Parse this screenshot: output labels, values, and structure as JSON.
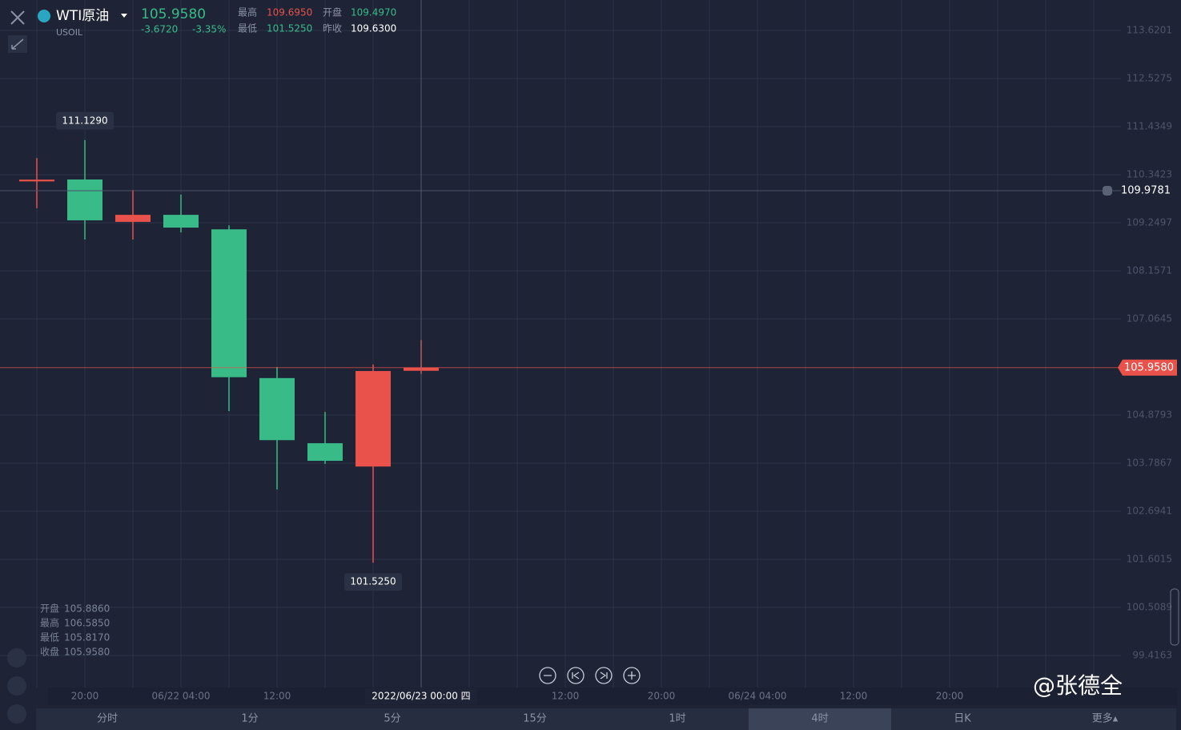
{
  "header": {
    "name": "WTI原油",
    "symbol": "USOIL",
    "price": "105.9580",
    "change": "-3.6720",
    "change_pct": "-3.35%",
    "stats": [
      {
        "label": "最高",
        "value": "109.6950"
      },
      {
        "label": "开盘",
        "value": "109.4970"
      },
      {
        "label": "最低",
        "value": "101.5250"
      },
      {
        "label": "昨收",
        "value": "109.6300"
      }
    ]
  },
  "ohlc_panel": [
    {
      "label": "开盘",
      "value": "105.8860"
    },
    {
      "label": "最高",
      "value": "106.5850"
    },
    {
      "label": "最低",
      "value": "105.8170"
    },
    {
      "label": "收盘",
      "value": "105.9580"
    }
  ],
  "tabs": [
    "分时",
    "1分",
    "5分",
    "15分",
    "1时",
    "4时",
    "日K",
    "更多▴"
  ],
  "watermark": "@张德全",
  "chart_data": {
    "type": "candlestick",
    "categories": [
      null,
      "20:00",
      null,
      "06/22 04:00",
      null,
      "12:00",
      null,
      null,
      null,
      null,
      null,
      "12:00",
      null,
      "20:00",
      null,
      "06/24 04:00",
      null,
      "12:00",
      null,
      "20:00",
      null,
      null,
      null
    ],
    "crosshair_label": "2022/06/23 00:00 四",
    "open": [
      110.19,
      110.233,
      109.27,
      109.43,
      109.1,
      105.72,
      104.24,
      103.71,
      105.886,
      null,
      null,
      null,
      null,
      null,
      null,
      null,
      null,
      null,
      null,
      null,
      null,
      null,
      null
    ],
    "high": [
      110.72,
      111.129,
      109.996,
      109.89,
      109.19,
      105.97,
      104.95,
      106.03,
      106.585,
      null,
      null,
      null,
      null,
      null,
      null,
      null,
      null,
      null,
      null,
      null,
      null,
      null,
      null
    ],
    "low": [
      109.58,
      108.87,
      108.87,
      109.03,
      104.97,
      103.19,
      103.77,
      101.525,
      105.817,
      null,
      null,
      null,
      null,
      null,
      null,
      null,
      null,
      null,
      null,
      null,
      null,
      null,
      null
    ],
    "close": [
      110.23,
      109.305,
      109.43,
      109.14,
      105.74,
      104.31,
      103.84,
      105.88,
      105.958,
      null,
      null,
      null,
      null,
      null,
      null,
      null,
      null,
      null,
      null,
      null,
      null,
      null,
      null
    ],
    "up_color": "#e8524a",
    "down_color": "#38bb87",
    "max_label": "111.1290",
    "min_label": "101.5250",
    "last_price": 105.958,
    "last_price_label": "105.9580",
    "alert_price": 109.9781,
    "alert_price_label": "109.9781",
    "ylim": [
      98.688,
      114.312
    ],
    "yticks": [
      113.6201,
      112.5275,
      111.4349,
      110.3423,
      109.2497,
      108.1571,
      107.0645,
      104.8793,
      103.7867,
      102.6941,
      101.6015,
      100.5089,
      99.4163
    ],
    "grid": true
  }
}
